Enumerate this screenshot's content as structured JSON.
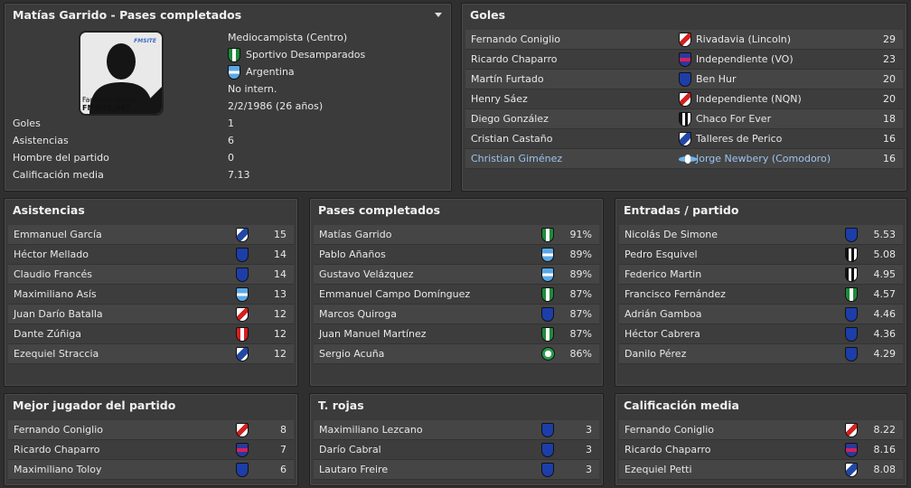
{
  "profile": {
    "title": "Matías Garrido - Pases completados",
    "photo_caption_1": "Facepack Único",
    "photo_caption_2": "FMSITE.NET",
    "position": "Mediocampista (Centro)",
    "club": "Sportivo Desamparados",
    "nation": "Argentina",
    "intl": "No intern.",
    "dob": "2/2/1986 (26 años)",
    "stats": [
      {
        "label": "Goles",
        "value": "1"
      },
      {
        "label": "Asistencias",
        "value": "6"
      },
      {
        "label": "Hombre del partido",
        "value": "0"
      },
      {
        "label": "Calificación media",
        "value": "7.13"
      }
    ]
  },
  "goles": {
    "title": "Goles",
    "rows": [
      {
        "name": "Fernando Coniglio",
        "club": "Rivadavia (Lincoln)",
        "value": "29",
        "icon": "red-white-diag"
      },
      {
        "name": "Ricardo Chaparro",
        "club": "Independiente (VO)",
        "value": "23",
        "icon": "magenta"
      },
      {
        "name": "Martín Furtado",
        "club": "Ben Hur",
        "value": "20",
        "icon": "navy"
      },
      {
        "name": "Henry Sáez",
        "club": "Independiente (NQN)",
        "value": "20",
        "icon": "red-white-diag"
      },
      {
        "name": "Diego González",
        "club": "Chaco For Ever",
        "value": "18",
        "icon": "black-white"
      },
      {
        "name": "Cristian Castaño",
        "club": "Talleres de Perico",
        "value": "16",
        "icon": "blue-band"
      },
      {
        "name": "Christian Giménez",
        "club": "Jorge Newbery (Comodoro)",
        "value": "16",
        "icon": "wing",
        "highlight": true
      }
    ]
  },
  "asistencias": {
    "title": "Asistencias",
    "rows": [
      {
        "name": "Emmanuel García",
        "value": "15",
        "icon": "blue-band"
      },
      {
        "name": "Héctor Mellado",
        "value": "14",
        "icon": "navy"
      },
      {
        "name": "Claudio Francés",
        "value": "14",
        "icon": "navy"
      },
      {
        "name": "Maximiliano Asís",
        "value": "13",
        "icon": "skyblue"
      },
      {
        "name": "Juan Darío Batalla",
        "value": "12",
        "icon": "red-white-diag"
      },
      {
        "name": "Dante Zúñiga",
        "value": "12",
        "icon": "red-white"
      },
      {
        "name": "Ezequiel Straccia",
        "value": "12",
        "icon": "blue-band"
      }
    ]
  },
  "pases": {
    "title": "Pases completados",
    "rows": [
      {
        "name": "Matías Garrido",
        "value": "91%",
        "icon": "green-white"
      },
      {
        "name": "Pablo Añaños",
        "value": "89%",
        "icon": "skyblue"
      },
      {
        "name": "Gustavo Velázquez",
        "value": "89%",
        "icon": "skyblue"
      },
      {
        "name": "Emmanuel Campo Domínguez",
        "value": "87%",
        "icon": "green-white"
      },
      {
        "name": "Marcos Quiroga",
        "value": "87%",
        "icon": "navy"
      },
      {
        "name": "Juan Manuel Martínez",
        "value": "87%",
        "icon": "green-white"
      },
      {
        "name": "Sergio Acuña",
        "value": "86%",
        "icon": "round-green"
      }
    ]
  },
  "entradas": {
    "title": "Entradas / partido",
    "rows": [
      {
        "name": "Nicolás De Simone",
        "value": "5.53",
        "icon": "navy"
      },
      {
        "name": "Pedro Esquivel",
        "value": "5.08",
        "icon": "black-white"
      },
      {
        "name": "Federico Martin",
        "value": "4.95",
        "icon": "black-white"
      },
      {
        "name": "Francisco Fernández",
        "value": "4.57",
        "icon": "green-white"
      },
      {
        "name": "Adrián Gamboa",
        "value": "4.46",
        "icon": "navy"
      },
      {
        "name": "Héctor Cabrera",
        "value": "4.36",
        "icon": "navy"
      },
      {
        "name": "Danilo Pérez",
        "value": "4.29",
        "icon": "navy"
      }
    ]
  },
  "mejor": {
    "title": "Mejor jugador del partido",
    "rows": [
      {
        "name": "Fernando Coniglio",
        "value": "8",
        "icon": "red-white-diag"
      },
      {
        "name": "Ricardo Chaparro",
        "value": "7",
        "icon": "magenta"
      },
      {
        "name": "Maximiliano Toloy",
        "value": "6",
        "icon": "navy"
      }
    ]
  },
  "rojas": {
    "title": "T. rojas",
    "rows": [
      {
        "name": "Maximiliano Lezcano",
        "value": "3",
        "icon": "navy"
      },
      {
        "name": "Darío Cabral",
        "value": "3",
        "icon": "navy"
      },
      {
        "name": "Lautaro Freire",
        "value": "3",
        "icon": "navy"
      }
    ]
  },
  "calificacion": {
    "title": "Calificación media",
    "rows": [
      {
        "name": "Fernando Coniglio",
        "value": "8.22",
        "icon": "red-white-diag"
      },
      {
        "name": "Ricardo Chaparro",
        "value": "8.16",
        "icon": "magenta"
      },
      {
        "name": "Ezequiel Petti",
        "value": "8.08",
        "icon": "blue-band"
      }
    ]
  }
}
